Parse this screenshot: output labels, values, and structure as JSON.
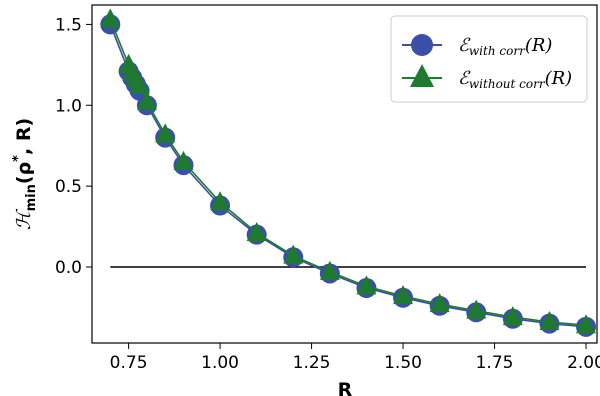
{
  "chart_data": {
    "type": "line",
    "xlabel": "R",
    "ylabel": {
      "main": "ℋ",
      "sub": "min",
      "rest": "(ρ",
      "sup": "*",
      "tail": ", R)"
    },
    "xlim": [
      0.65,
      2.03
    ],
    "ylim": [
      -0.47,
      1.62
    ],
    "xticks": [
      "0.75",
      "1.00",
      "1.25",
      "1.50",
      "1.75",
      "2.00"
    ],
    "yticks": [
      "0.0",
      "0.5",
      "1.0",
      "1.5"
    ],
    "grid": false,
    "legend_position": "top-right",
    "x": [
      0.7,
      0.75,
      0.76,
      0.77,
      0.78,
      0.8,
      0.85,
      0.9,
      1.0,
      1.1,
      1.2,
      1.3,
      1.4,
      1.5,
      1.6,
      1.7,
      1.8,
      1.9,
      2.0
    ],
    "series": [
      {
        "name": "with corr",
        "legend": {
          "main": "ℰ",
          "sub": "with corr",
          "arg": "(R)"
        },
        "color": "#3a4fa8",
        "marker": "circle",
        "values": [
          1.5,
          1.21,
          1.17,
          1.13,
          1.09,
          1.0,
          0.8,
          0.63,
          0.38,
          0.2,
          0.06,
          -0.04,
          -0.13,
          -0.19,
          -0.24,
          -0.28,
          -0.32,
          -0.35,
          -0.37
        ]
      },
      {
        "name": "without corr",
        "legend": {
          "main": "ℰ",
          "sub": "without corr",
          "arg": "(R)"
        },
        "color": "#1e7a2e",
        "marker": "triangle",
        "values": [
          1.53,
          1.25,
          1.2,
          1.16,
          1.12,
          1.02,
          0.82,
          0.65,
          0.4,
          0.21,
          0.07,
          -0.03,
          -0.12,
          -0.18,
          -0.23,
          -0.27,
          -0.31,
          -0.34,
          -0.36
        ]
      }
    ],
    "hline": 0.0
  }
}
